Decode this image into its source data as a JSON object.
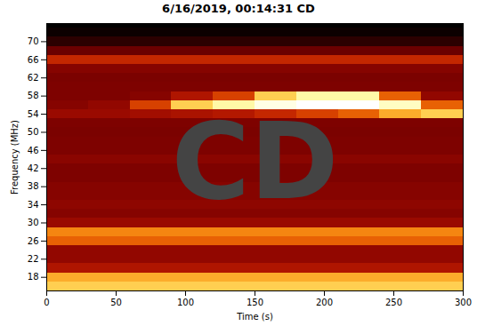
{
  "chart_data": {
    "type": "heatmap",
    "title": "6/16/2019, 00:14:31 CD",
    "x_label": "Time (s)",
    "y_label": "Frequency (MHz)",
    "xlim": [
      0,
      300
    ],
    "ylim": [
      15,
      74
    ],
    "xticks": [
      0,
      50,
      100,
      150,
      200,
      250,
      300
    ],
    "yticks": [
      18,
      22,
      26,
      30,
      34,
      38,
      42,
      46,
      50,
      54,
      58,
      62,
      66,
      70
    ],
    "x_edges": [
      0,
      30,
      60,
      90,
      120,
      150,
      180,
      210,
      240,
      270,
      300
    ],
    "y_edges": [
      15,
      17,
      19,
      21,
      23,
      25,
      27,
      29,
      31,
      33,
      35,
      37,
      39,
      41,
      43,
      45,
      47,
      49,
      51,
      53,
      55,
      57,
      59,
      61,
      63,
      65,
      67,
      69,
      71,
      73,
      75
    ],
    "values": [
      [
        0.75,
        0.75,
        0.75,
        0.75,
        0.75,
        0.75,
        0.75,
        0.75,
        0.75,
        0.75
      ],
      [
        0.7,
        0.7,
        0.7,
        0.7,
        0.7,
        0.7,
        0.7,
        0.7,
        0.7,
        0.7
      ],
      [
        0.45,
        0.45,
        0.45,
        0.45,
        0.45,
        0.45,
        0.45,
        0.45,
        0.45,
        0.45
      ],
      [
        0.38,
        0.38,
        0.38,
        0.38,
        0.38,
        0.38,
        0.38,
        0.38,
        0.38,
        0.38
      ],
      [
        0.38,
        0.38,
        0.38,
        0.38,
        0.38,
        0.38,
        0.38,
        0.38,
        0.38,
        0.38
      ],
      [
        0.6,
        0.6,
        0.6,
        0.6,
        0.6,
        0.6,
        0.6,
        0.6,
        0.6,
        0.6
      ],
      [
        0.65,
        0.65,
        0.65,
        0.65,
        0.65,
        0.65,
        0.65,
        0.65,
        0.65,
        0.65
      ],
      [
        0.4,
        0.4,
        0.4,
        0.4,
        0.4,
        0.4,
        0.4,
        0.4,
        0.4,
        0.4
      ],
      [
        0.35,
        0.35,
        0.35,
        0.35,
        0.35,
        0.35,
        0.35,
        0.35,
        0.35,
        0.35
      ],
      [
        0.37,
        0.37,
        0.37,
        0.37,
        0.37,
        0.37,
        0.37,
        0.37,
        0.37,
        0.37
      ],
      [
        0.35,
        0.35,
        0.35,
        0.35,
        0.35,
        0.35,
        0.35,
        0.35,
        0.35,
        0.35
      ],
      [
        0.35,
        0.35,
        0.35,
        0.35,
        0.35,
        0.35,
        0.35,
        0.35,
        0.35,
        0.35
      ],
      [
        0.33,
        0.33,
        0.33,
        0.33,
        0.33,
        0.33,
        0.33,
        0.33,
        0.33,
        0.33
      ],
      [
        0.33,
        0.33,
        0.33,
        0.33,
        0.33,
        0.33,
        0.33,
        0.33,
        0.33,
        0.33
      ],
      [
        0.36,
        0.36,
        0.36,
        0.36,
        0.36,
        0.36,
        0.36,
        0.36,
        0.36,
        0.36
      ],
      [
        0.33,
        0.33,
        0.33,
        0.33,
        0.33,
        0.33,
        0.33,
        0.33,
        0.33,
        0.33
      ],
      [
        0.33,
        0.33,
        0.33,
        0.33,
        0.33,
        0.33,
        0.33,
        0.33,
        0.33,
        0.33
      ],
      [
        0.32,
        0.32,
        0.32,
        0.32,
        0.32,
        0.32,
        0.32,
        0.32,
        0.32,
        0.32
      ],
      [
        0.33,
        0.33,
        0.33,
        0.33,
        0.33,
        0.33,
        0.33,
        0.33,
        0.33,
        0.33
      ],
      [
        0.4,
        0.4,
        0.42,
        0.44,
        0.46,
        0.5,
        0.55,
        0.6,
        0.7,
        0.75
      ],
      [
        0.35,
        0.38,
        0.55,
        0.75,
        0.85,
        0.92,
        0.95,
        0.95,
        0.88,
        0.6
      ],
      [
        0.33,
        0.33,
        0.35,
        0.45,
        0.55,
        0.75,
        0.85,
        0.85,
        0.6,
        0.38
      ],
      [
        0.33,
        0.33,
        0.33,
        0.33,
        0.33,
        0.33,
        0.33,
        0.33,
        0.33,
        0.33
      ],
      [
        0.32,
        0.32,
        0.32,
        0.32,
        0.32,
        0.32,
        0.32,
        0.32,
        0.32,
        0.32
      ],
      [
        0.35,
        0.35,
        0.35,
        0.35,
        0.35,
        0.35,
        0.35,
        0.35,
        0.35,
        0.35
      ],
      [
        0.5,
        0.5,
        0.5,
        0.5,
        0.5,
        0.5,
        0.5,
        0.5,
        0.5,
        0.5
      ],
      [
        0.28,
        0.28,
        0.28,
        0.28,
        0.28,
        0.28,
        0.28,
        0.28,
        0.28,
        0.28
      ],
      [
        0.15,
        0.15,
        0.15,
        0.15,
        0.15,
        0.15,
        0.15,
        0.15,
        0.15,
        0.15
      ],
      [
        0.1,
        0.1,
        0.1,
        0.1,
        0.1,
        0.1,
        0.1,
        0.1,
        0.1,
        0.1
      ],
      [
        0.08,
        0.08,
        0.08,
        0.08,
        0.08,
        0.08,
        0.08,
        0.08,
        0.08,
        0.08
      ]
    ],
    "annotations": [
      {
        "text": "CD",
        "x": 150,
        "y": 43
      }
    ]
  }
}
